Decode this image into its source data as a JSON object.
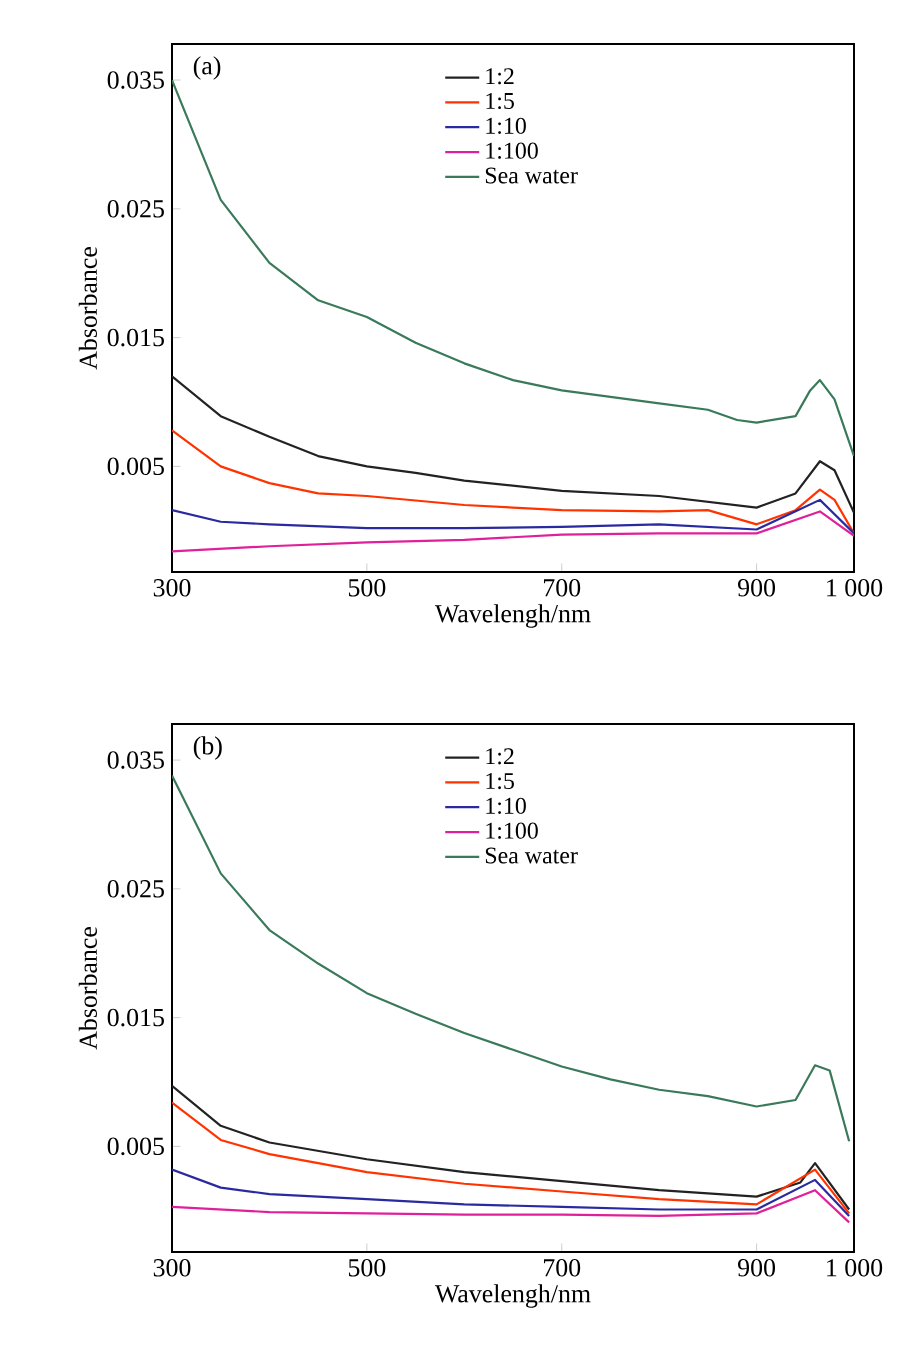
{
  "chart_data": [
    {
      "type": "line",
      "xlabel": "Wavelengh/nm",
      "ylabel": "Absorbance",
      "annotations": [
        "(a)"
      ],
      "legend": "top",
      "xlim": [
        300,
        1000
      ],
      "ylim": [
        -0.0032,
        0.0378
      ],
      "xticks": [
        300,
        500,
        700,
        900,
        {
          "value": 1000,
          "label": "1 000"
        }
      ],
      "yticks": [
        0.005,
        0.015,
        0.025,
        0.035
      ],
      "series": [
        {
          "name": "1:2",
          "color": "#222222",
          "x": [
            300,
            350,
            400,
            450,
            500,
            550,
            600,
            700,
            800,
            900,
            940,
            965,
            980,
            1000
          ],
          "values": [
            0.012,
            0.0089,
            0.0073,
            0.0058,
            0.005,
            0.0045,
            0.0039,
            0.0031,
            0.0027,
            0.0018,
            0.0029,
            0.0054,
            0.0047,
            0.0014
          ]
        },
        {
          "name": "1:5",
          "color": "#ff3300",
          "x": [
            300,
            350,
            400,
            450,
            500,
            600,
            700,
            800,
            850,
            900,
            940,
            965,
            980,
            1000
          ],
          "values": [
            0.0078,
            0.005,
            0.0037,
            0.0029,
            0.0027,
            0.002,
            0.0016,
            0.0015,
            0.0016,
            0.0005,
            0.0016,
            0.0032,
            0.0024,
            -0.0002
          ]
        },
        {
          "name": "1:10",
          "color": "#2a2aa0",
          "x": [
            300,
            350,
            400,
            500,
            600,
            700,
            800,
            900,
            965,
            1000
          ],
          "values": [
            0.0016,
            0.0007,
            0.0005,
            0.0002,
            0.0002,
            0.0003,
            0.0005,
            0.0001,
            0.0024,
            -0.0002
          ]
        },
        {
          "name": "1:100",
          "color": "#e0209a",
          "x": [
            300,
            400,
            500,
            600,
            700,
            800,
            900,
            965,
            1000
          ],
          "values": [
            -0.0016,
            -0.0012,
            -0.0009,
            -0.0007,
            -0.0003,
            -0.0002,
            -0.0002,
            0.0015,
            -0.0004
          ]
        },
        {
          "name": "Sea water",
          "color": "#3a7a5a",
          "x": [
            300,
            350,
            400,
            450,
            500,
            550,
            600,
            650,
            700,
            750,
            800,
            850,
            880,
            900,
            940,
            955,
            965,
            980,
            1000
          ],
          "values": [
            0.035,
            0.0257,
            0.0208,
            0.0179,
            0.0166,
            0.0146,
            0.013,
            0.0117,
            0.0109,
            0.0104,
            0.0099,
            0.0094,
            0.0086,
            0.0084,
            0.0089,
            0.0109,
            0.0117,
            0.0102,
            0.0058
          ]
        }
      ]
    },
    {
      "type": "line",
      "xlabel": "Wavelengh/nm",
      "ylabel": "Absorbance",
      "annotations": [
        "(b)"
      ],
      "legend": "top",
      "xlim": [
        300,
        1000
      ],
      "ylim": [
        -0.0032,
        0.0378
      ],
      "xticks": [
        300,
        500,
        700,
        900,
        {
          "value": 1000,
          "label": "1 000"
        }
      ],
      "yticks": [
        0.005,
        0.015,
        0.025,
        0.035
      ],
      "series": [
        {
          "name": "1:2",
          "color": "#222222",
          "x": [
            300,
            350,
            400,
            500,
            600,
            700,
            800,
            900,
            945,
            960,
            995
          ],
          "values": [
            0.0097,
            0.0066,
            0.0053,
            0.004,
            0.003,
            0.0023,
            0.0016,
            0.0011,
            0.0022,
            0.0037,
            0.0001
          ]
        },
        {
          "name": "1:5",
          "color": "#ff3300",
          "x": [
            300,
            350,
            400,
            500,
            600,
            700,
            800,
            900,
            960,
            995
          ],
          "values": [
            0.0084,
            0.0055,
            0.0044,
            0.003,
            0.0021,
            0.0015,
            0.0009,
            0.0005,
            0.0032,
            -0.0002
          ]
        },
        {
          "name": "1:10",
          "color": "#2a2aa0",
          "x": [
            300,
            350,
            400,
            500,
            600,
            700,
            800,
            900,
            960,
            995
          ],
          "values": [
            0.0032,
            0.0018,
            0.0013,
            0.0009,
            0.0005,
            0.0003,
            0.0001,
            0.0001,
            0.0024,
            -0.0004
          ]
        },
        {
          "name": "1:100",
          "color": "#e0209a",
          "x": [
            300,
            400,
            500,
            600,
            700,
            800,
            900,
            960,
            995
          ],
          "values": [
            0.0003,
            -0.0001,
            -0.0002,
            -0.0003,
            -0.0003,
            -0.0004,
            -0.0002,
            0.0016,
            -0.0009
          ]
        },
        {
          "name": "Sea water",
          "color": "#3a7a5a",
          "x": [
            300,
            350,
            400,
            450,
            500,
            550,
            600,
            650,
            700,
            750,
            800,
            850,
            900,
            940,
            960,
            975,
            995
          ],
          "values": [
            0.0338,
            0.0262,
            0.0218,
            0.0192,
            0.0169,
            0.0153,
            0.0138,
            0.0125,
            0.0112,
            0.0102,
            0.0094,
            0.0089,
            0.0081,
            0.0086,
            0.0113,
            0.0109,
            0.0054
          ]
        }
      ]
    }
  ]
}
